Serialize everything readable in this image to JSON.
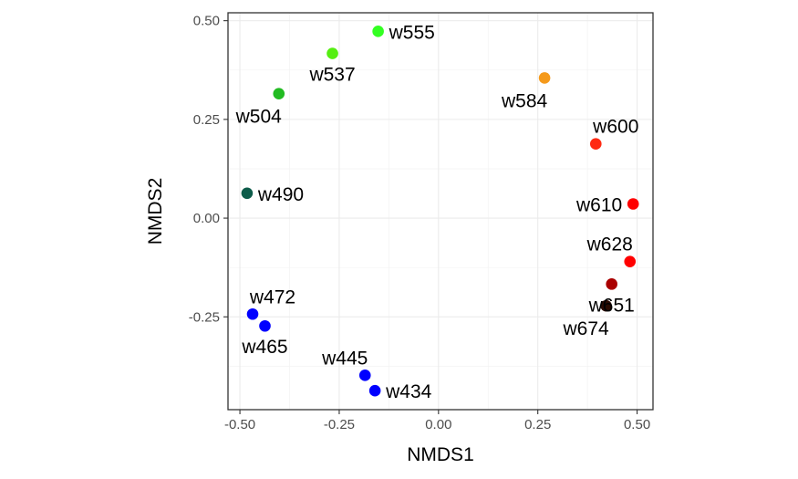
{
  "chart_data": {
    "type": "scatter",
    "xlabel": "NMDS1",
    "ylabel": "NMDS2",
    "xlim": [
      -0.53,
      0.54
    ],
    "ylim": [
      -0.485,
      0.52
    ],
    "xticks": [
      -0.5,
      -0.25,
      0.0,
      0.25,
      0.5
    ],
    "xtick_labels": [
      "-0.50",
      "-0.25",
      "0.00",
      "0.25",
      "0.50"
    ],
    "yticks": [
      -0.25,
      0.0,
      0.25,
      0.5
    ],
    "ytick_labels": [
      "-0.25",
      "0.00",
      "0.25",
      "0.50"
    ],
    "grid": true,
    "legend": "none",
    "points": [
      {
        "label": "w555",
        "x": -0.152,
        "y": 0.473,
        "color": "#33ff22",
        "label_pos": "right"
      },
      {
        "label": "w537",
        "x": -0.267,
        "y": 0.417,
        "color": "#55ee11",
        "label_pos": "below"
      },
      {
        "label": "w504",
        "x": -0.402,
        "y": 0.315,
        "color": "#22bb22",
        "label_pos": "below-left"
      },
      {
        "label": "w584",
        "x": 0.267,
        "y": 0.355,
        "color": "#f59a1b",
        "label_pos": "below-left"
      },
      {
        "label": "w600",
        "x": 0.396,
        "y": 0.188,
        "color": "#ff2a12",
        "label_pos": "above-right"
      },
      {
        "label": "w490",
        "x": -0.482,
        "y": 0.063,
        "color": "#0d5c4a",
        "label_pos": "right"
      },
      {
        "label": "w610",
        "x": 0.49,
        "y": 0.036,
        "color": "#ff0000",
        "label_pos": "left"
      },
      {
        "label": "w628",
        "x": 0.482,
        "y": -0.11,
        "color": "#ff0000",
        "label_pos": "above-left"
      },
      {
        "label": "w651",
        "x": 0.436,
        "y": -0.167,
        "color": "#aa0000",
        "label_pos": "below"
      },
      {
        "label": "w674",
        "x": 0.422,
        "y": -0.222,
        "color": "#2a0a00",
        "label_pos": "below-left"
      },
      {
        "label": "w472",
        "x": -0.468,
        "y": -0.243,
        "color": "#0000ff",
        "label_pos": "above-right"
      },
      {
        "label": "w465",
        "x": -0.437,
        "y": -0.273,
        "color": "#0000ff",
        "label_pos": "below"
      },
      {
        "label": "w445",
        "x": -0.185,
        "y": -0.398,
        "color": "#0000ff",
        "label_pos": "above-left"
      },
      {
        "label": "w434",
        "x": -0.16,
        "y": -0.437,
        "color": "#0000ff",
        "label_pos": "right"
      }
    ]
  }
}
